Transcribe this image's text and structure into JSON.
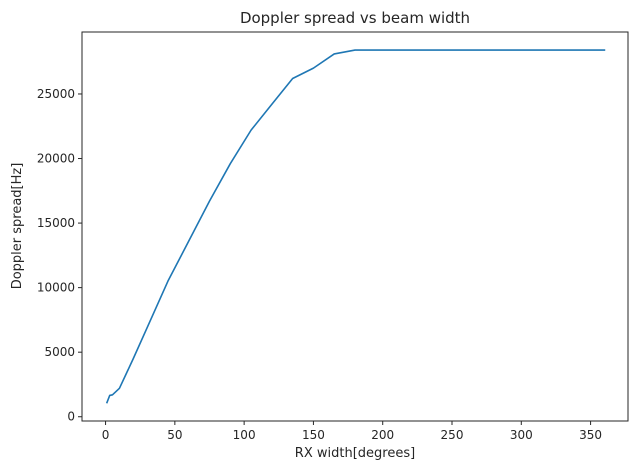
{
  "chart_data": {
    "type": "line",
    "title": "Doppler spread vs beam width",
    "xlabel": "RX width[degrees]",
    "ylabel": "Doppler spread[Hz]",
    "xlim": [
      -17,
      377
    ],
    "ylim": [
      -330,
      29800
    ],
    "xticks": [
      0,
      50,
      100,
      150,
      200,
      250,
      300,
      350
    ],
    "yticks": [
      0,
      5000,
      10000,
      15000,
      20000,
      25000
    ],
    "grid": false,
    "legend": "none",
    "series": [
      {
        "color": "#1f77b4",
        "x": [
          1,
          3,
          5,
          10,
          20,
          30,
          45,
          60,
          75,
          90,
          105,
          120,
          135,
          150,
          165,
          180,
          200,
          250,
          300,
          360
        ],
        "y": [
          1100,
          1650,
          1700,
          2200,
          4500,
          6900,
          10500,
          13600,
          16700,
          19600,
          22200,
          24200,
          26200,
          27000,
          28100,
          28400,
          28400,
          28400,
          28400,
          28400
        ]
      }
    ]
  }
}
